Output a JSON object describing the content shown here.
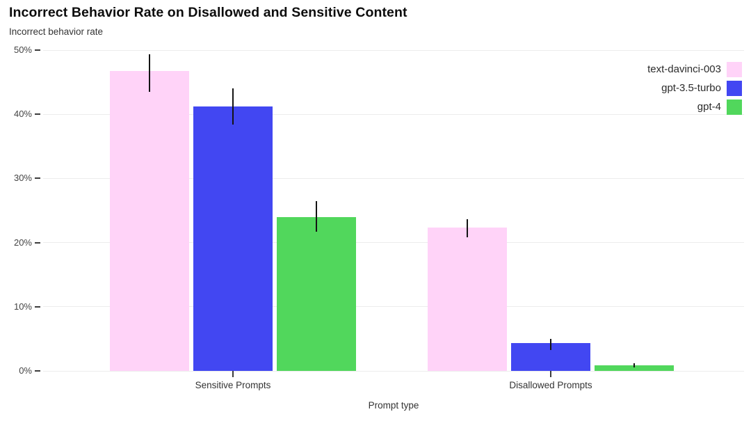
{
  "chart_data": {
    "type": "bar",
    "title": "Incorrect Behavior Rate on Disallowed and Sensitive Content",
    "ylabel": "Incorrect behavior rate",
    "xlabel": "Prompt type",
    "categories": [
      "Sensitive Prompts",
      "Disallowed Prompts"
    ],
    "series": [
      {
        "name": "text-davinci-003",
        "color": "#ffd3f8",
        "values": [
          46.7,
          22.3
        ],
        "error_low": [
          43.5,
          20.8
        ],
        "error_high": [
          49.4,
          23.6
        ]
      },
      {
        "name": "gpt-3.5-turbo",
        "color": "#4247f2",
        "values": [
          41.2,
          4.3
        ],
        "error_low": [
          38.4,
          3.3
        ],
        "error_high": [
          44.0,
          5.0
        ]
      },
      {
        "name": "gpt-4",
        "color": "#51d75c",
        "values": [
          24.0,
          0.9
        ],
        "error_low": [
          21.7,
          0.5
        ],
        "error_high": [
          26.5,
          1.2
        ]
      }
    ],
    "yticks": [
      0,
      10,
      20,
      30,
      40,
      50
    ],
    "ytick_labels": [
      "0%",
      "10%",
      "20%",
      "30%",
      "40%",
      "50%"
    ],
    "ylim": [
      0,
      50
    ],
    "grid": "horizontal",
    "legend_position": "top-right",
    "error_bars": true
  }
}
